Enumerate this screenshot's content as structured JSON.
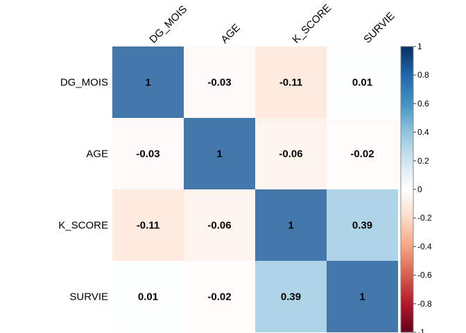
{
  "chart_data": {
    "type": "heatmap",
    "variables": [
      "DG_MOIS",
      "AGE",
      "K_SCORE",
      "SURVIE"
    ],
    "matrix": [
      [
        1,
        -0.03,
        -0.11,
        0.01
      ],
      [
        -0.03,
        1,
        -0.06,
        -0.02
      ],
      [
        -0.11,
        -0.06,
        1,
        0.39
      ],
      [
        0.01,
        -0.02,
        0.39,
        1
      ]
    ],
    "value_labels": [
      [
        "1",
        "-0.03",
        "-0.11",
        "0.01"
      ],
      [
        "-0.03",
        "1",
        "-0.06",
        "-0.02"
      ],
      [
        "-0.11",
        "-0.06",
        "1",
        "0.39"
      ],
      [
        "0.01",
        "-0.02",
        "0.39",
        "1"
      ]
    ],
    "colorbar": {
      "range": [
        -1,
        1
      ],
      "ticks": [
        "1",
        "0.8",
        "0.6",
        "0.4",
        "0.2",
        "0",
        "-0.2",
        "-0.4",
        "-0.6",
        "-0.8",
        "-1"
      ],
      "colors": {
        "negative": "#b2182b",
        "neutral": "#ffffff",
        "positive": "#2166ac"
      }
    },
    "legend_placement": "right",
    "grid": false
  }
}
